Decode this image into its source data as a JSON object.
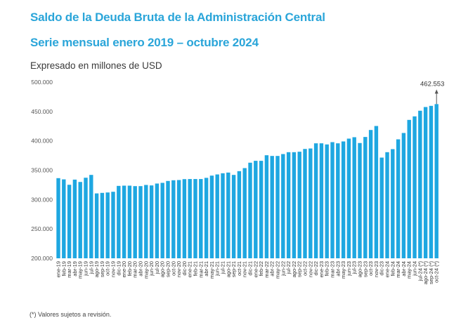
{
  "header": {
    "title": "Saldo de la Deuda Bruta de la Administración Central",
    "subtitle": "Serie mensual enero 2019 – octubre 2024",
    "unit_note": "Expresado en millones de USD"
  },
  "footnote": "(*) Valores sujetos a revisión.",
  "colors": {
    "bar": "#1ea7e1",
    "title": "#2aa5d9",
    "annotation_arrow": "#555555"
  },
  "chart_data": {
    "type": "bar",
    "title": "Saldo de la Deuda Bruta de la Administración Central",
    "subtitle": "Serie mensual enero 2019 – octubre 2024",
    "xlabel": "",
    "ylabel": "Expresado en millones de USD",
    "ylim": [
      200000,
      500000
    ],
    "yticks": [
      200000,
      250000,
      300000,
      350000,
      400000,
      450000,
      500000
    ],
    "ytick_labels": [
      "200.000",
      "250.000",
      "300.000",
      "350.000",
      "400.000",
      "450.000",
      "500.000"
    ],
    "grid": false,
    "legend": "none",
    "categories": [
      "ene-19",
      "feb-19",
      "mar-19",
      "abr-19",
      "may-19",
      "jun-19",
      "jul-19",
      "ago-19",
      "sep-19",
      "oct-19",
      "nov-19",
      "dic-19",
      "ene-20",
      "feb-20",
      "mar-20",
      "abr-20",
      "may-20",
      "jun-20",
      "jul-20",
      "ago-20",
      "sep-20",
      "oct-20",
      "nov-20",
      "dic-20",
      "ene-21",
      "feb-21",
      "mar-21",
      "abr-21",
      "may-21",
      "jun-21",
      "jul-21",
      "ago-21",
      "sep-21",
      "oct-21",
      "nov-21",
      "dic-21",
      "ene-22",
      "feb-22",
      "mar-22",
      "abr-22",
      "may-22",
      "jun-22",
      "jul-22",
      "ago-22",
      "sep-22",
      "oct-22",
      "nov-22",
      "dic-22",
      "ene-23",
      "feb-23",
      "mar-23",
      "abr-23",
      "may-23",
      "jun-23",
      "jul-23",
      "ago-23",
      "sep-23",
      "oct-23",
      "nov-23",
      "dic-23",
      "ene-24",
      "feb-24",
      "mar-24",
      "abr-24",
      "may-24",
      "jun-24",
      "jul-24 (*)",
      "ago-24 (*)",
      "sep-24 (*)",
      "oct-24 (*)"
    ],
    "series": [
      {
        "name": "Saldo de la Deuda Bruta",
        "values": [
          336500,
          334400,
          325200,
          334000,
          330000,
          337200,
          342000,
          310500,
          311400,
          312100,
          313300,
          323300,
          323700,
          323700,
          322900,
          322900,
          324900,
          324100,
          327300,
          328500,
          331700,
          332900,
          333300,
          334800,
          335000,
          335000,
          335000,
          337000,
          340800,
          342800,
          344800,
          346000,
          342000,
          348400,
          353600,
          362800,
          366000,
          366000,
          375500,
          374300,
          374300,
          377500,
          380700,
          380700,
          381500,
          386200,
          387000,
          395800,
          395800,
          393900,
          397800,
          395800,
          399000,
          403800,
          406200,
          396300,
          406600,
          418500,
          425300,
          371500,
          380700,
          385900,
          402600,
          413400,
          435700,
          441700,
          451300,
          457600,
          459600,
          462553
        ]
      }
    ],
    "annotations": [
      {
        "category": "oct-24 (*)",
        "text": "462.553",
        "arrow": true
      }
    ]
  }
}
